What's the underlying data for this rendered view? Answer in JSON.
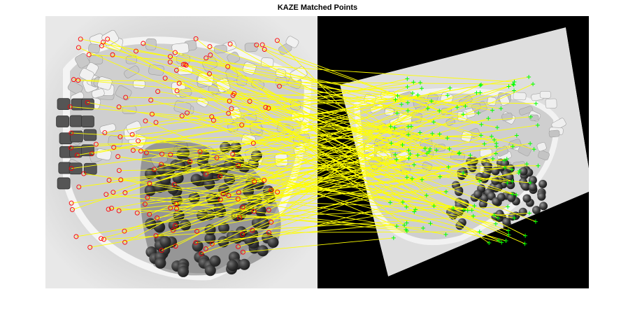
{
  "title": "KAZE Matched Points",
  "colors": {
    "background": "#ffffff",
    "match_line": "#ffff00",
    "image1_marker": "#ff0000",
    "image2_marker": "#00ff00",
    "image2_canvas": "#000000"
  },
  "markers": {
    "image1": "circle",
    "image2": "plus"
  },
  "panels": [
    {
      "name": "original-image",
      "content": "grayscale photo of a bowl with wrapped candies and dark round candies"
    },
    {
      "name": "distorted-image",
      "content": "same photo, scaled, rotated and projectively warped on black background"
    }
  ]
}
